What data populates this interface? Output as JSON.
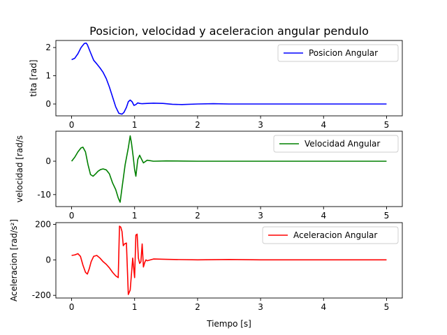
{
  "chart_data": {
    "type": "line",
    "title": "Posicion, velocidad y aceleracion  angular pendulo",
    "xlabel": "Tiempo [s]",
    "xlim": [
      -0.25,
      5.25
    ],
    "xticks": [
      "0",
      "1",
      "2",
      "3",
      "4",
      "5"
    ],
    "grid": false,
    "legend_position": "top-right",
    "panels": [
      {
        "ylabel": "tita [rad]",
        "ylim": [
          -0.42,
          2.25
        ],
        "yticks": [
          "0",
          "1",
          "2"
        ],
        "series": [
          {
            "name": "Posicion Angular",
            "color": "#0000ff",
            "x": [
              0,
              0.05,
              0.1,
              0.15,
              0.2,
              0.23,
              0.25,
              0.3,
              0.35,
              0.4,
              0.45,
              0.5,
              0.55,
              0.6,
              0.65,
              0.7,
              0.75,
              0.8,
              0.83,
              0.87,
              0.9,
              0.93,
              0.96,
              0.99,
              1.02,
              1.05,
              1.08,
              1.12,
              1.2,
              1.3,
              1.45,
              1.6,
              1.75,
              2.0,
              2.25,
              2.5,
              3.0,
              3.5,
              4.0,
              4.5,
              5.0
            ],
            "y": [
              1.57,
              1.62,
              1.78,
              2.0,
              2.14,
              2.16,
              2.1,
              1.82,
              1.55,
              1.42,
              1.28,
              1.12,
              0.9,
              0.6,
              0.25,
              -0.1,
              -0.33,
              -0.36,
              -0.3,
              -0.12,
              0.08,
              0.14,
              0.08,
              -0.05,
              -0.02,
              0.04,
              0.02,
              0.01,
              0.02,
              0.03,
              0.02,
              -0.01,
              -0.02,
              0.0,
              0.01,
              0.0,
              0.0,
              0.0,
              0.0,
              0.0,
              0.0
            ]
          }
        ]
      },
      {
        "ylabel": "velocidad [rad/s",
        "ylim": [
          -13.6,
          9.0
        ],
        "yticks": [
          "0",
          "-10"
        ],
        "series": [
          {
            "name": "Velocidad Angular",
            "color": "#008000",
            "x": [
              0,
              0.05,
              0.1,
              0.15,
              0.18,
              0.22,
              0.26,
              0.3,
              0.34,
              0.38,
              0.42,
              0.46,
              0.5,
              0.55,
              0.6,
              0.65,
              0.7,
              0.74,
              0.77,
              0.8,
              0.85,
              0.9,
              0.93,
              0.95,
              0.98,
              1.0,
              1.02,
              1.05,
              1.08,
              1.1,
              1.14,
              1.2,
              1.3,
              1.5,
              2.0,
              2.5,
              3.0,
              3.5,
              4.0,
              4.5,
              5.0
            ],
            "y": [
              0,
              1.2,
              2.8,
              4.0,
              4.2,
              2.8,
              -1.0,
              -4.0,
              -4.5,
              -3.8,
              -3.0,
              -2.5,
              -2.3,
              -2.6,
              -3.8,
              -6.5,
              -8.5,
              -11.0,
              -12.3,
              -8.0,
              -1.0,
              4.0,
              7.6,
              5.5,
              1.0,
              -2.5,
              -4.5,
              0.5,
              1.8,
              1.0,
              -0.5,
              0.3,
              0.0,
              0.1,
              0.0,
              0.0,
              0.0,
              0.0,
              0.0,
              0.0,
              0.0
            ]
          }
        ]
      },
      {
        "ylabel": "Aceleracion [rad/s²]",
        "ylim": [
          -215,
          210
        ],
        "yticks": [
          "200",
          "0",
          "-200"
        ],
        "series": [
          {
            "name": "Aceleracion Angular",
            "color": "#ff0000",
            "x": [
              0,
              0.05,
              0.1,
              0.14,
              0.18,
              0.22,
              0.25,
              0.28,
              0.31,
              0.35,
              0.4,
              0.45,
              0.5,
              0.55,
              0.6,
              0.65,
              0.7,
              0.74,
              0.76,
              0.78,
              0.8,
              0.82,
              0.84,
              0.87,
              0.9,
              0.93,
              0.95,
              0.97,
              1.0,
              1.02,
              1.04,
              1.06,
              1.08,
              1.1,
              1.12,
              1.14,
              1.16,
              1.18,
              1.2,
              1.3,
              1.5,
              2.0,
              2.5,
              3.0,
              3.5,
              4.0,
              4.5,
              5.0
            ],
            "y": [
              25,
              28,
              35,
              20,
              -30,
              -70,
              -80,
              -50,
              -10,
              20,
              25,
              10,
              -10,
              -25,
              -45,
              -70,
              -90,
              -100,
              190,
              185,
              160,
              80,
              90,
              95,
              -195,
              -170,
              -80,
              10,
              -100,
              140,
              145,
              10,
              -20,
              -10,
              90,
              -40,
              -15,
              0,
              -5,
              5,
              3,
              0,
              2,
              0,
              0,
              0,
              0,
              0
            ]
          }
        ]
      }
    ]
  }
}
